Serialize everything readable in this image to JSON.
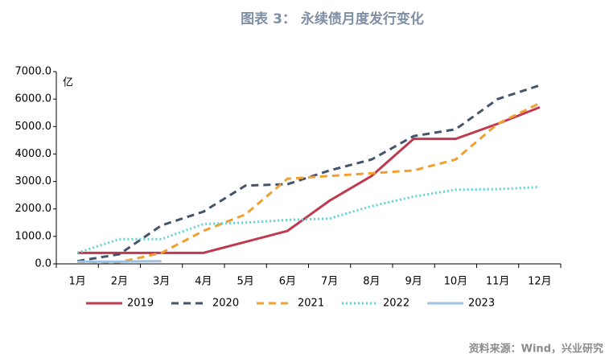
{
  "chart_data": {
    "type": "line",
    "title": "图表 3：  永续债月度发行变化",
    "y_label": "亿",
    "source": "资料来源：Wind，兴业研究",
    "categories": [
      "1月",
      "2月",
      "3月",
      "4月",
      "5月",
      "6月",
      "7月",
      "8月",
      "9月",
      "10月",
      "11月",
      "12月"
    ],
    "ylim": [
      0,
      7000
    ],
    "yticks": [
      {
        "value": 0,
        "label": "0.0"
      },
      {
        "value": 1000,
        "label": "1000.0"
      },
      {
        "value": 2000,
        "label": "2000.0"
      },
      {
        "value": 3000,
        "label": "3000.0"
      },
      {
        "value": 4000,
        "label": "4000.0"
      },
      {
        "value": 5000,
        "label": "5000.0"
      },
      {
        "value": 6000,
        "label": "6000.0"
      },
      {
        "value": 7000,
        "label": "7000.0"
      }
    ],
    "legend": "bottom",
    "series": [
      {
        "name": "2019",
        "color": "#c0394f",
        "style": "solid",
        "values": [
          400,
          400,
          400,
          400,
          800,
          1200,
          2300,
          3200,
          4550,
          4550,
          5100,
          5700
        ]
      },
      {
        "name": "2020",
        "color": "#44546a",
        "style": "dashed",
        "values": [
          100,
          350,
          1400,
          1900,
          2850,
          2900,
          3400,
          3800,
          4650,
          4900,
          6000,
          6500
        ]
      },
      {
        "name": "2021",
        "color": "#f0a030",
        "style": "dashed",
        "values": [
          50,
          60,
          400,
          1200,
          1800,
          3100,
          3200,
          3300,
          3400,
          3800,
          5100,
          5850
        ]
      },
      {
        "name": "2022",
        "color": "#5fd3d3",
        "style": "dotted",
        "values": [
          400,
          900,
          900,
          1450,
          1500,
          1600,
          1650,
          2100,
          2450,
          2700,
          2720,
          2800
        ]
      },
      {
        "name": "2023",
        "color": "#9dc3e6",
        "style": "solid",
        "values": [
          80,
          80,
          100,
          null,
          null,
          null,
          null,
          null,
          null,
          null,
          null,
          null
        ]
      }
    ]
  }
}
